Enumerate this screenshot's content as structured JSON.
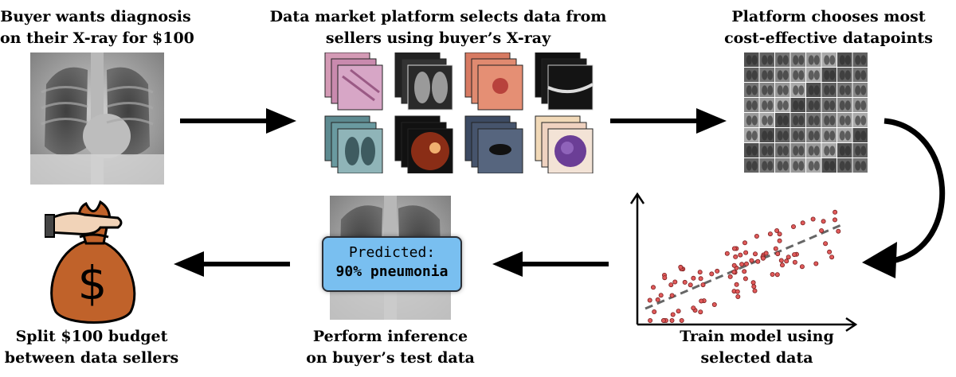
{
  "steps": {
    "buyer": {
      "line1": "Buyer wants diagnosis",
      "line2": "on their X-ray for $100"
    },
    "market": {
      "line1": "Data market platform selects data from",
      "line2": "sellers using buyer’s X-ray"
    },
    "platform": {
      "line1": "Platform chooses most",
      "line2": "cost-effective datapoints"
    },
    "train": {
      "line1": "Train model using",
      "line2": "selected data"
    },
    "inference": {
      "line1": "Perform inference",
      "line2": "on buyer’s test data"
    },
    "split": {
      "line1": "Split $100 budget",
      "line2": "between data sellers"
    }
  },
  "prediction": {
    "line1": "Predicted:",
    "line2": "90% pneumonia"
  },
  "money_bag": {
    "symbol": "$"
  },
  "icons": [
    "xray-image",
    "data-tiles",
    "xray-grid",
    "scatter-plot",
    "money-bag-icon",
    "arrow-icon"
  ],
  "colors": {
    "prediction_box": "#79bff0",
    "bag": "#c0622a",
    "scatter_points": "#e05a5a",
    "regression_line": "#666666"
  }
}
